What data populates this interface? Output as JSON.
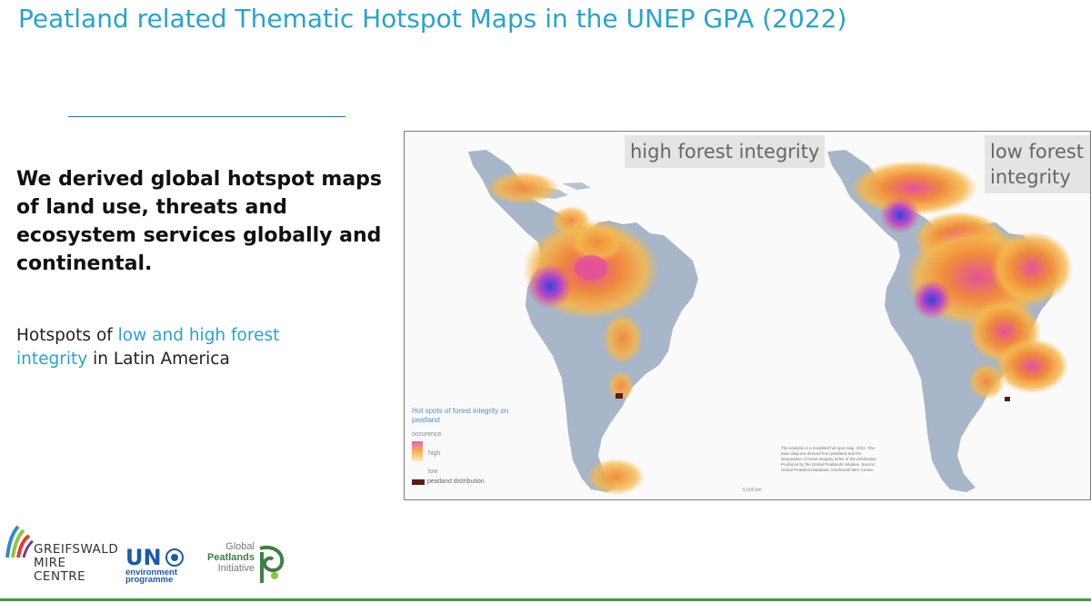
{
  "title": "Peatland related Thematic Hotspot Maps in the UNEP GPA (2022)",
  "headline": "We derived global hotspot maps of land use, threats and ecosystem services globally and continental.",
  "subtitle": {
    "before": "Hotspots of ",
    "highlight": "low and high forest integrity",
    "after": " in Latin America"
  },
  "map": {
    "left_label": "high forest integrity",
    "right_label": "low forest integrity",
    "legend": {
      "title": "Hot spots of forest integrity on peatland",
      "occurrence": "occurence",
      "high": "high",
      "low": "low",
      "peatland": "peatland distribution"
    },
    "credits": "The analysis is a modelled hot spot map, 2022. The base data are derived from peatland and the designation of forest integrity index of the publication. Produced by the Global Peatlands Initiative. Source: Global Peatland Database, Greifswald Mire Centre.",
    "scale": "5,000 km",
    "colors": {
      "land": "#a7b6c9",
      "hot_low": "#f6b84c",
      "hot_mid": "#f08a3c",
      "hot_high": "#e4509a",
      "hot_peak": "#5a4ad8",
      "peat": "#5a1e14"
    }
  },
  "logos": {
    "gmc": "GREIFSWALD MIRE CENTRE",
    "gmc_lines": [
      "GREIFSWALD",
      "MIRE",
      "CENTRE"
    ],
    "un": "UN",
    "unep_lines": [
      "environment",
      "programme"
    ],
    "gpi_lines": [
      "Global",
      "Peatlands",
      "Initiative"
    ]
  },
  "colors": {
    "title": "#29a3cc",
    "rule": "#2f6db5",
    "footer_line": "#3b9e3b"
  }
}
